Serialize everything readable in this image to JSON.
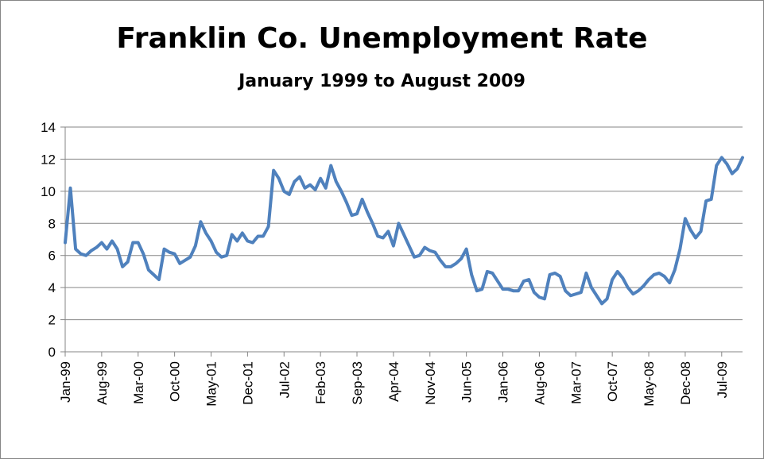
{
  "chart_data": {
    "type": "line",
    "title": "Franklin Co. Unemployment Rate",
    "subtitle": "January 1999 to August 2009",
    "xlabel": "",
    "ylabel": "",
    "ylim": [
      0,
      14
    ],
    "yticks": [
      0,
      2,
      4,
      6,
      8,
      10,
      12,
      14
    ],
    "xtick_labels": [
      "Jan-99",
      "Aug-99",
      "Mar-00",
      "Oct-00",
      "May-01",
      "Dec-01",
      "Jul-02",
      "Feb-03",
      "Sep-03",
      "Apr-04",
      "Nov-04",
      "Jun-05",
      "Jan-06",
      "Aug-06",
      "Mar-07",
      "Oct-07",
      "May-08",
      "Dec-08",
      "Jul-09"
    ],
    "grid": true,
    "legend": "none",
    "colors": {
      "series": "#4f81bd",
      "grid": "#868686",
      "axis": "#868686"
    },
    "x_start": "Jan-99",
    "x_end": "Aug-09",
    "series": [
      {
        "values": [
          6.8,
          10.2,
          6.4,
          6.1,
          6.0,
          6.3,
          6.5,
          6.8,
          6.4,
          6.9,
          6.4,
          5.3,
          5.6,
          6.8,
          6.8,
          6.1,
          5.1,
          4.8,
          4.5,
          6.4,
          6.2,
          6.1,
          5.5,
          5.7,
          5.9,
          6.6,
          8.1,
          7.4,
          6.9,
          6.2,
          5.9,
          6.0,
          7.3,
          6.9,
          7.4,
          6.9,
          6.8,
          7.2,
          7.2,
          7.8,
          11.3,
          10.8,
          10.0,
          9.8,
          10.6,
          10.9,
          10.2,
          10.4,
          10.1,
          10.8,
          10.2,
          11.6,
          10.6,
          10.0,
          9.3,
          8.5,
          8.6,
          9.5,
          8.7,
          8.0,
          7.2,
          7.1,
          7.5,
          6.6,
          8.0,
          7.3,
          6.6,
          5.9,
          6.0,
          6.5,
          6.3,
          6.2,
          5.7,
          5.3,
          5.3,
          5.5,
          5.8,
          6.4,
          4.8,
          3.8,
          3.9,
          5.0,
          4.9,
          4.4,
          3.9,
          3.9,
          3.8,
          3.8,
          4.4,
          4.5,
          3.7,
          3.4,
          3.3,
          4.8,
          4.9,
          4.7,
          3.8,
          3.5,
          3.6,
          3.7,
          4.9,
          4.0,
          3.5,
          3.0,
          3.3,
          4.5,
          5.0,
          4.6,
          4.0,
          3.6,
          3.8,
          4.1,
          4.5,
          4.8,
          4.9,
          4.7,
          4.3,
          5.1,
          6.4,
          8.3,
          7.6,
          7.1,
          7.5,
          9.4,
          9.5,
          11.6,
          12.1,
          11.7,
          11.1,
          11.4,
          12.1
        ]
      }
    ]
  }
}
